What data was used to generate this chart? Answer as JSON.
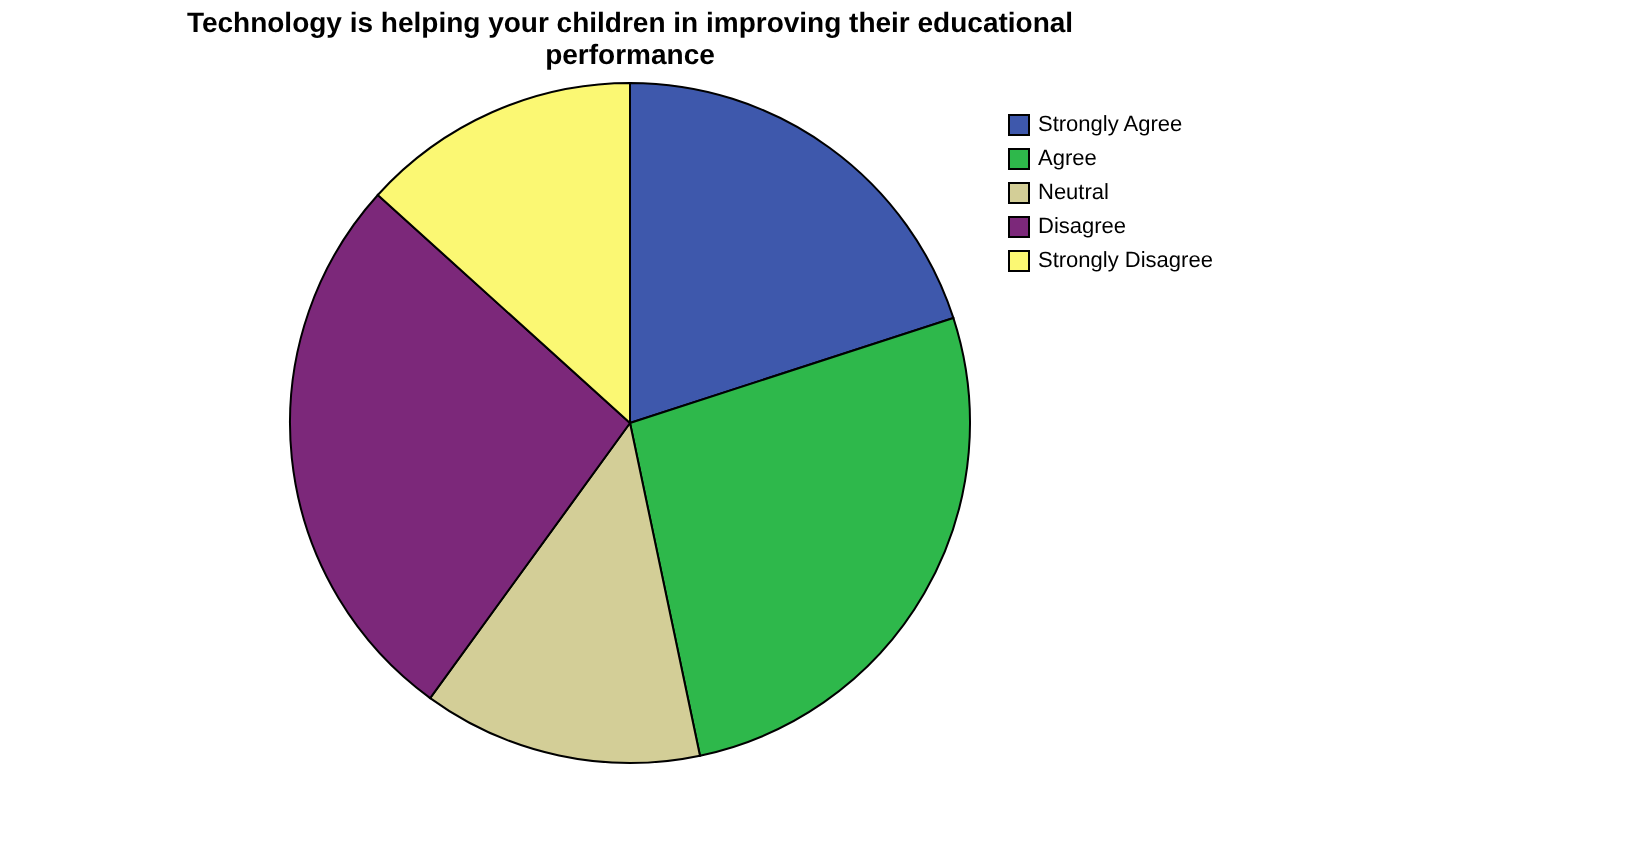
{
  "chart_data": {
    "type": "pie",
    "title": [
      "Technology is helping your children in improving their educational",
      "performance"
    ],
    "categories": [
      "Strongly Agree",
      "Agree",
      "Neutral",
      "Disagree",
      "Strongly Disagree"
    ],
    "values": [
      20,
      26.7,
      13.3,
      26.7,
      13.3
    ],
    "colors": [
      "#3e58ac",
      "#2eb84b",
      "#d3ce97",
      "#7c287a",
      "#fbf873"
    ],
    "legend": "top right"
  }
}
